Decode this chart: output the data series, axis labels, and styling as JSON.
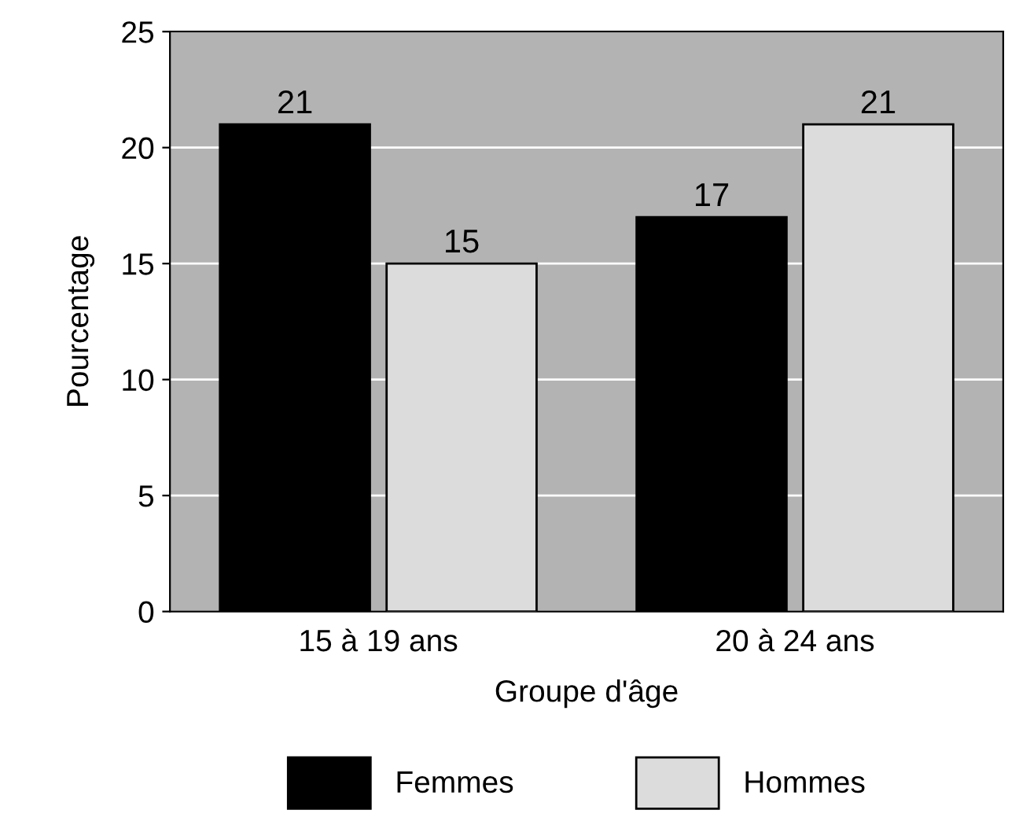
{
  "chart_data": {
    "type": "bar",
    "xlabel": "Groupe d'âge",
    "ylabel": "Pourcentage",
    "categories": [
      "15 à 19 ans",
      "20 à 24 ans"
    ],
    "series": [
      {
        "name": "Femmes",
        "color": "#000000",
        "values": [
          21,
          17
        ]
      },
      {
        "name": "Hommes",
        "color": "#dcdcdc",
        "values": [
          15,
          21
        ]
      }
    ],
    "ylim": [
      0,
      25
    ],
    "yticks": [
      0,
      5,
      10,
      15,
      20,
      25
    ],
    "grid": "y",
    "legend": "bottom",
    "data_labels": true
  }
}
